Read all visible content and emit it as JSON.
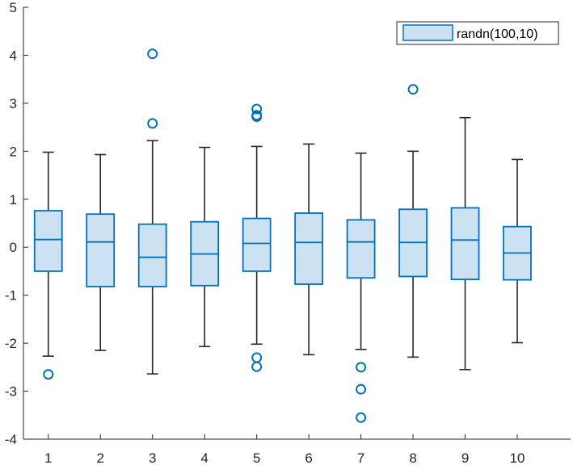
{
  "chart_data": {
    "type": "box",
    "title": "",
    "xlabel": "",
    "ylabel": "",
    "categories": [
      "1",
      "2",
      "3",
      "4",
      "5",
      "6",
      "7",
      "8",
      "9",
      "10"
    ],
    "ylim": [
      -4,
      5
    ],
    "yticks": [
      "-4",
      "-3",
      "-2",
      "-1",
      "0",
      "1",
      "2",
      "3",
      "4",
      "5"
    ],
    "grid": false,
    "legend_position": "top-right",
    "series": [
      {
        "name": "randn(100,10)",
        "boxes": [
          {
            "q1": -0.5,
            "median": 0.16,
            "q3": 0.76,
            "whisker_low": -2.27,
            "whisker_high": 1.98,
            "outliers": [
              -2.65
            ]
          },
          {
            "q1": -0.82,
            "median": 0.11,
            "q3": 0.69,
            "whisker_low": -2.15,
            "whisker_high": 1.93,
            "outliers": []
          },
          {
            "q1": -0.82,
            "median": -0.21,
            "q3": 0.48,
            "whisker_low": -2.64,
            "whisker_high": 2.22,
            "outliers": [
              2.58,
              4.03
            ]
          },
          {
            "q1": -0.8,
            "median": -0.14,
            "q3": 0.53,
            "whisker_low": -2.07,
            "whisker_high": 2.08,
            "outliers": []
          },
          {
            "q1": -0.5,
            "median": 0.08,
            "q3": 0.6,
            "whisker_low": -2.02,
            "whisker_high": 2.1,
            "outliers": [
              -2.49,
              -2.3,
              2.72,
              2.75,
              2.88
            ]
          },
          {
            "q1": -0.77,
            "median": 0.1,
            "q3": 0.71,
            "whisker_low": -2.24,
            "whisker_high": 2.15,
            "outliers": []
          },
          {
            "q1": -0.64,
            "median": 0.11,
            "q3": 0.57,
            "whisker_low": -2.13,
            "whisker_high": 1.96,
            "outliers": [
              -3.55,
              -2.96,
              -2.5
            ]
          },
          {
            "q1": -0.61,
            "median": 0.1,
            "q3": 0.79,
            "whisker_low": -2.29,
            "whisker_high": 2.0,
            "outliers": [
              3.29
            ]
          },
          {
            "q1": -0.67,
            "median": 0.15,
            "q3": 0.82,
            "whisker_low": -2.55,
            "whisker_high": 2.7,
            "outliers": []
          },
          {
            "q1": -0.68,
            "median": -0.12,
            "q3": 0.43,
            "whisker_low": -1.99,
            "whisker_high": 1.83,
            "outliers": []
          }
        ]
      }
    ],
    "colors": {
      "box_fill": "#cce1f1",
      "box_edge": "#0072bd",
      "whisker": "#262626",
      "outlier": "#0072bd",
      "axis": "#262626"
    }
  }
}
